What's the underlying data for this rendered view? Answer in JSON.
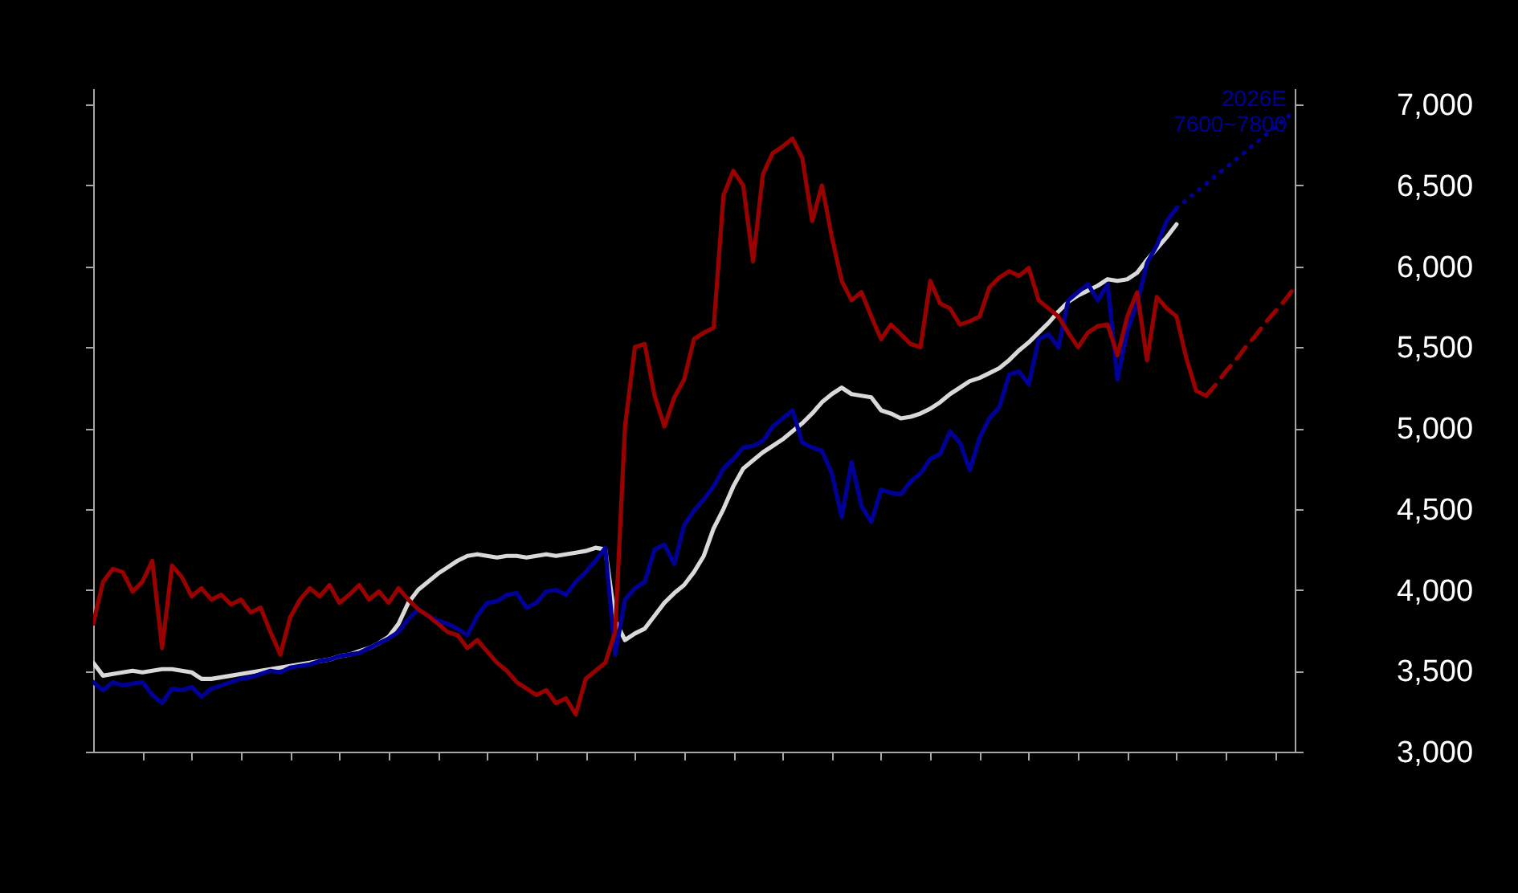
{
  "chart_data": {
    "type": "line",
    "categories": [
      null,
      null,
      null,
      null,
      null,
      null,
      null,
      null,
      null,
      null,
      null,
      null,
      null,
      null,
      null,
      null,
      null,
      null,
      null,
      null,
      null,
      null,
      null,
      null,
      null,
      null,
      null,
      null,
      null,
      null,
      null,
      null,
      null,
      null,
      null,
      null,
      null,
      null,
      null,
      null,
      null,
      null,
      null,
      null,
      null,
      null,
      null,
      null,
      null,
      null,
      null,
      null,
      null,
      null,
      null,
      null,
      null,
      null,
      null,
      null,
      null,
      null,
      null,
      null,
      null,
      null,
      null,
      null,
      null,
      null,
      null,
      null,
      null,
      null,
      null,
      null,
      null,
      null,
      null,
      null,
      null,
      null,
      null,
      null,
      null,
      null,
      null,
      null,
      null,
      null,
      null,
      null,
      null,
      null,
      null,
      null,
      null,
      null,
      null,
      null,
      null,
      null,
      null,
      null,
      null,
      null,
      null,
      null,
      null,
      null,
      null,
      null,
      null,
      null,
      null,
      null,
      null,
      null,
      null,
      null,
      null,
      null,
      null
    ],
    "series": [
      {
        "color": "#d9d9d9",
        "values": [
          3550,
          3470,
          3480,
          3490,
          3500,
          3490,
          3500,
          3510,
          3510,
          3500,
          3490,
          3450,
          3450,
          3460,
          3470,
          3480,
          3490,
          3500,
          3510,
          3520,
          3530,
          3540,
          3550,
          3560,
          3570,
          3590,
          3600,
          3620,
          3640,
          3670,
          3710,
          3790,
          3920,
          4000,
          4050,
          4100,
          4140,
          4180,
          4210,
          4220,
          4210,
          4200,
          4210,
          4210,
          4200,
          4210,
          4220,
          4210,
          4220,
          4230,
          4240,
          4260,
          4250,
          3810,
          3690,
          3730,
          3760,
          3840,
          3920,
          3980,
          4030,
          4110,
          4210,
          4380,
          4500,
          4640,
          4750,
          4800,
          4850,
          4890,
          4930,
          4980,
          5030,
          5090,
          5160,
          5210,
          5250,
          5210,
          5200,
          5190,
          5110,
          5090,
          5060,
          5070,
          5090,
          5120,
          5160,
          5210,
          5250,
          5290,
          5310,
          5340,
          5370,
          5420,
          5480,
          5530,
          5590,
          5650,
          5720,
          5780,
          5820,
          5850,
          5880,
          5920,
          5910,
          5920,
          5960,
          6040,
          6110,
          6180,
          6260,
          null,
          null,
          null,
          null,
          null,
          null,
          null,
          null,
          null,
          null,
          null,
          null
        ]
      },
      {
        "color": "#000099",
        "values": [
          3430,
          3380,
          3430,
          3410,
          3420,
          3430,
          3350,
          3300,
          3390,
          3380,
          3400,
          3340,
          3390,
          3410,
          3430,
          3450,
          3460,
          3480,
          3500,
          3490,
          3520,
          3530,
          3540,
          3560,
          3570,
          3590,
          3600,
          3610,
          3640,
          3670,
          3700,
          3740,
          3820,
          3880,
          3840,
          3810,
          3790,
          3760,
          3720,
          3840,
          3920,
          3930,
          3970,
          3980,
          3890,
          3920,
          3990,
          4000,
          3970,
          4050,
          4110,
          4180,
          4260,
          3600,
          3940,
          4010,
          4050,
          4250,
          4280,
          4160,
          4400,
          4490,
          4560,
          4640,
          4750,
          4810,
          4880,
          4890,
          4920,
          5010,
          5060,
          5110,
          4910,
          4880,
          4860,
          4720,
          4450,
          4790,
          4520,
          4420,
          4620,
          4600,
          4590,
          4670,
          4720,
          4810,
          4840,
          4980,
          4910,
          4740,
          4940,
          5060,
          5130,
          5330,
          5350,
          5270,
          5550,
          5580,
          5500,
          5790,
          5840,
          5890,
          5790,
          5890,
          5300,
          5600,
          5770,
          6020,
          6130,
          6280,
          6360,
          null,
          null,
          null,
          null,
          null,
          null,
          null,
          null,
          null,
          null,
          null,
          null
        ]
      },
      {
        "color": "#990000",
        "values": [
          3790,
          4050,
          4130,
          4110,
          3990,
          4050,
          4180,
          3640,
          4150,
          4080,
          3960,
          4010,
          3940,
          3970,
          3910,
          3940,
          3860,
          3890,
          3740,
          3600,
          3830,
          3940,
          4010,
          3960,
          4030,
          3920,
          3970,
          4030,
          3940,
          3990,
          3920,
          4010,
          3940,
          3880,
          3840,
          3790,
          3740,
          3720,
          3640,
          3690,
          3620,
          3550,
          3500,
          3430,
          3390,
          3350,
          3380,
          3300,
          3330,
          3230,
          3450,
          3500,
          3550,
          3740,
          5010,
          5500,
          5520,
          5200,
          5010,
          5190,
          5300,
          5550,
          5590,
          5620,
          6440,
          6590,
          6500,
          6030,
          6570,
          6700,
          6740,
          6790,
          6670,
          6280,
          6500,
          6180,
          5910,
          5790,
          5840,
          5690,
          5550,
          5640,
          5580,
          5520,
          5500,
          5910,
          5770,
          5740,
          5640,
          5660,
          5690,
          5870,
          5930,
          5970,
          5940,
          5990,
          5790,
          5740,
          5690,
          5590,
          5500,
          5590,
          5630,
          5640,
          5450,
          5690,
          5840,
          5420,
          5810,
          5740,
          5690,
          5430,
          5230,
          5200,
          null,
          null,
          null,
          null,
          null,
          null,
          null,
          null,
          null
        ]
      },
      {
        "color": "#000099",
        "line_style": "dotted",
        "values": [
          null,
          null,
          null,
          null,
          null,
          null,
          null,
          null,
          null,
          null,
          null,
          null,
          null,
          null,
          null,
          null,
          null,
          null,
          null,
          null,
          null,
          null,
          null,
          null,
          null,
          null,
          null,
          null,
          null,
          null,
          null,
          null,
          null,
          null,
          null,
          null,
          null,
          null,
          null,
          null,
          null,
          null,
          null,
          null,
          null,
          null,
          null,
          null,
          null,
          null,
          null,
          null,
          null,
          null,
          null,
          null,
          null,
          null,
          null,
          null,
          null,
          null,
          null,
          null,
          null,
          null,
          null,
          null,
          null,
          null,
          null,
          null,
          null,
          null,
          null,
          null,
          null,
          null,
          null,
          null,
          null,
          null,
          null,
          null,
          null,
          null,
          null,
          null,
          null,
          null,
          null,
          null,
          null,
          null,
          null,
          null,
          null,
          null,
          null,
          null,
          null,
          null,
          null,
          null,
          null,
          null,
          null,
          null,
          null,
          null,
          6360,
          6410,
          6460,
          6510,
          6560,
          6610,
          6660,
          6710,
          6760,
          6810,
          6860,
          6910,
          6960
        ]
      },
      {
        "color": "#990000",
        "line_style": "dashed",
        "values": [
          null,
          null,
          null,
          null,
          null,
          null,
          null,
          null,
          null,
          null,
          null,
          null,
          null,
          null,
          null,
          null,
          null,
          null,
          null,
          null,
          null,
          null,
          null,
          null,
          null,
          null,
          null,
          null,
          null,
          null,
          null,
          null,
          null,
          null,
          null,
          null,
          null,
          null,
          null,
          null,
          null,
          null,
          null,
          null,
          null,
          null,
          null,
          null,
          null,
          null,
          null,
          null,
          null,
          null,
          null,
          null,
          null,
          null,
          null,
          null,
          null,
          null,
          null,
          null,
          null,
          null,
          null,
          null,
          null,
          null,
          null,
          null,
          null,
          null,
          null,
          null,
          null,
          null,
          null,
          null,
          null,
          null,
          null,
          null,
          null,
          null,
          null,
          null,
          null,
          null,
          null,
          null,
          null,
          null,
          null,
          null,
          null,
          null,
          null,
          null,
          null,
          null,
          null,
          null,
          null,
          null,
          null,
          null,
          null,
          null,
          null,
          null,
          null,
          5200,
          5270,
          5350,
          5420,
          5500,
          5570,
          5650,
          5720,
          5790,
          5870
        ]
      }
    ],
    "ylim": [
      3000,
      7100
    ],
    "yticks": [
      {
        "value": 3000,
        "label": "3,000"
      },
      {
        "value": 3500,
        "label": "3,500"
      },
      {
        "value": 4000,
        "label": "4,000"
      },
      {
        "value": 4500,
        "label": "4,500"
      },
      {
        "value": 5000,
        "label": "5,000"
      },
      {
        "value": 5500,
        "label": "5,500"
      },
      {
        "value": 6000,
        "label": "6,000"
      },
      {
        "value": 6500,
        "label": "6,500"
      },
      {
        "value": 7000,
        "label": "7,000"
      }
    ],
    "tick_labels": "y",
    "grid": false,
    "annotations": [
      "2026E\n7600~7800"
    ]
  }
}
